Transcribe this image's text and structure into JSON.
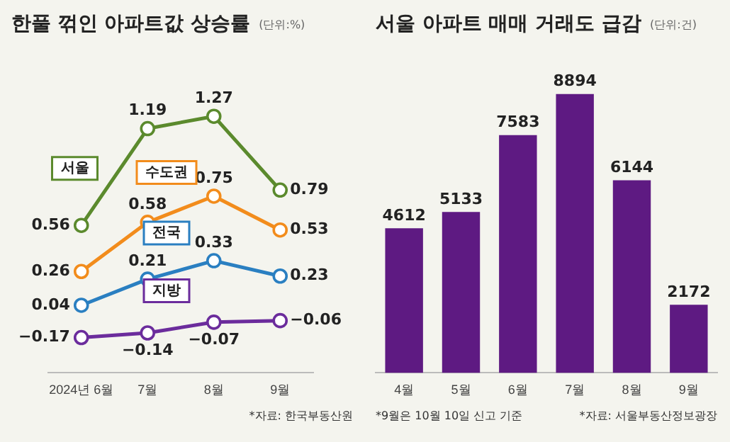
{
  "chart_data": [
    {
      "type": "line",
      "title": "한풀 꺾인 아파트값 상승률",
      "subtitle": "(단위:%)",
      "categories": [
        "2024년 6월",
        "7월",
        "8월",
        "9월"
      ],
      "series": [
        {
          "name": "서울",
          "color": "#5b8a2d",
          "values": [
            0.56,
            1.19,
            1.27,
            0.79
          ]
        },
        {
          "name": "수도권",
          "color": "#f28c1c",
          "values": [
            0.26,
            0.58,
            0.75,
            0.53
          ]
        },
        {
          "name": "전국",
          "color": "#2a7fc1",
          "values": [
            0.04,
            0.21,
            0.33,
            0.23
          ]
        },
        {
          "name": "지방",
          "color": "#6b2c9c",
          "values": [
            -0.17,
            -0.14,
            -0.07,
            -0.06
          ]
        }
      ],
      "tick_labels": "x",
      "data_labels": true,
      "marker": "circle",
      "grid": false,
      "legend": false,
      "annotations": [
        "*자료: 한국부동산원"
      ]
    },
    {
      "type": "bar",
      "title": "서울 아파트 매매 거래도 급감",
      "subtitle": "(단위:건)",
      "categories": [
        "4월",
        "5월",
        "6월",
        "7월",
        "8월",
        "9월"
      ],
      "values": [
        4612,
        5133,
        7583,
        8894,
        6144,
        2172
      ],
      "color": "#5e1a82",
      "tick_labels": "x",
      "data_labels": true,
      "grid": false,
      "legend": false,
      "annotations": [
        "*9월은 10월 10일 신고 기준",
        "*자료: 서울부동산정보광장"
      ]
    }
  ]
}
